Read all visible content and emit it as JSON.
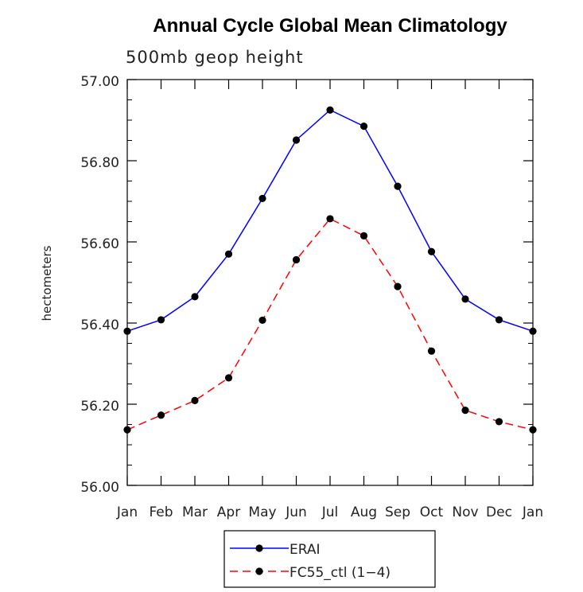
{
  "chart_data": {
    "type": "line",
    "title": "Annual Cycle Global Mean Climatology",
    "subtitle": "500mb geop height",
    "xlabel": "",
    "ylabel": "hectometers",
    "categories": [
      "Jan",
      "Feb",
      "Mar",
      "Apr",
      "May",
      "Jun",
      "Jul",
      "Aug",
      "Sep",
      "Oct",
      "Nov",
      "Dec",
      "Jan"
    ],
    "ylim": [
      56.0,
      57.0
    ],
    "yticks": [
      "56.00",
      "56.20",
      "56.40",
      "56.60",
      "56.80",
      "57.00"
    ],
    "series": [
      {
        "name": "ERAI",
        "color": "#0000ff",
        "dash": "solid",
        "values": [
          56.38,
          56.408,
          56.465,
          56.57,
          56.707,
          56.851,
          56.925,
          56.885,
          56.737,
          56.576,
          56.459,
          56.408,
          56.38
        ]
      },
      {
        "name": "FC55_ctl (1-4)",
        "color": "#ff0000",
        "dash": "dashed",
        "values": [
          56.137,
          56.173,
          56.209,
          56.265,
          56.407,
          56.556,
          56.657,
          56.615,
          56.49,
          56.331,
          56.185,
          56.157,
          56.137
        ]
      }
    ],
    "legend": {
      "position": "bottom-center",
      "entries": [
        "ERAI",
        "FC55_ctl (1−4)"
      ]
    },
    "grid": false
  }
}
